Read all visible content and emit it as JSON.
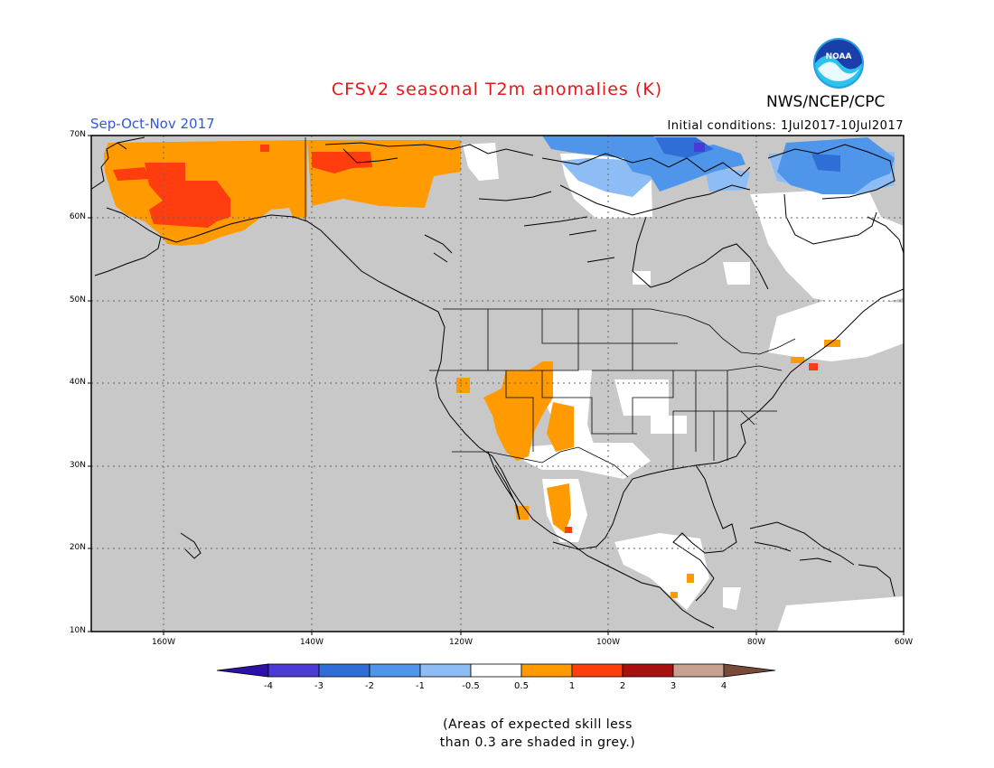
{
  "title": "CFSv2 seasonal T2m anomalies (K)",
  "organization": "NWS/NCEP/CPC",
  "logo_text": "NOAA",
  "season": "Sep-Oct-Nov 2017",
  "initial_conditions": "Initial conditions: 1Jul2017-10Jul2017",
  "lat_ticks": [
    "70N",
    "60N",
    "50N",
    "40N",
    "30N",
    "20N",
    "10N"
  ],
  "lon_ticks": [
    "160W",
    "140W",
    "120W",
    "100W",
    "80W",
    "60W"
  ],
  "colorbar": {
    "labels": [
      "-4",
      "-3",
      "-2",
      "-1",
      "-0.5",
      "0.5",
      "1",
      "2",
      "3",
      "4"
    ],
    "colors": [
      "#2e10a8",
      "#4b3ad6",
      "#2f6ed6",
      "#4f96ea",
      "#8ebdf5",
      "#ffffff",
      "#ff9b00",
      "#ff3d0f",
      "#a8100f",
      "#c8a090",
      "#7a4a38"
    ]
  },
  "note_line1": "(Areas of expected skill less",
  "note_line2": "than 0.3 are shaded in grey.)"
}
